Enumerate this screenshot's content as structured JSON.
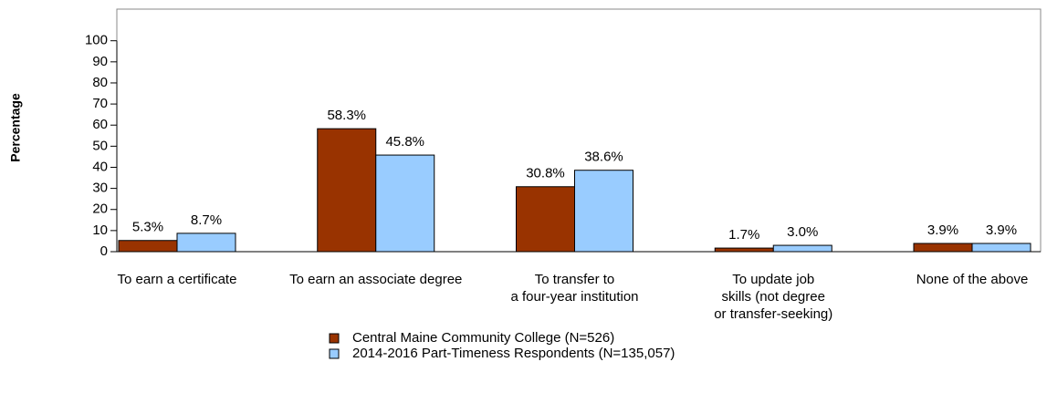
{
  "chart_data": {
    "type": "bar",
    "y_label": "Percentage",
    "categories": [
      "To earn a certificate",
      "To earn an associate degree",
      "To transfer to\na four-year institution",
      "To update job\nskills (not degree\nor transfer-seeking)",
      "None of the above"
    ],
    "series": [
      {
        "name": "Central Maine Community College (N=526)",
        "color": "#993300",
        "values": [
          5.3,
          58.3,
          30.8,
          1.7,
          3.9
        ],
        "value_labels": [
          "5.3%",
          "58.3%",
          "30.8%",
          "1.7%",
          "3.9%"
        ]
      },
      {
        "name": "2014-2016 Part-Timeness Respondents (N=135,057)",
        "color": "#99ccff",
        "values": [
          8.7,
          45.8,
          38.6,
          3.0,
          3.9
        ],
        "value_labels": [
          "8.7%",
          "45.8%",
          "38.6%",
          "3.0%",
          "3.9%"
        ]
      }
    ],
    "ylim": [
      0,
      115
    ],
    "yticks": [
      0,
      10,
      20,
      30,
      40,
      50,
      60,
      70,
      80,
      90,
      100
    ],
    "legend": "bottom"
  }
}
